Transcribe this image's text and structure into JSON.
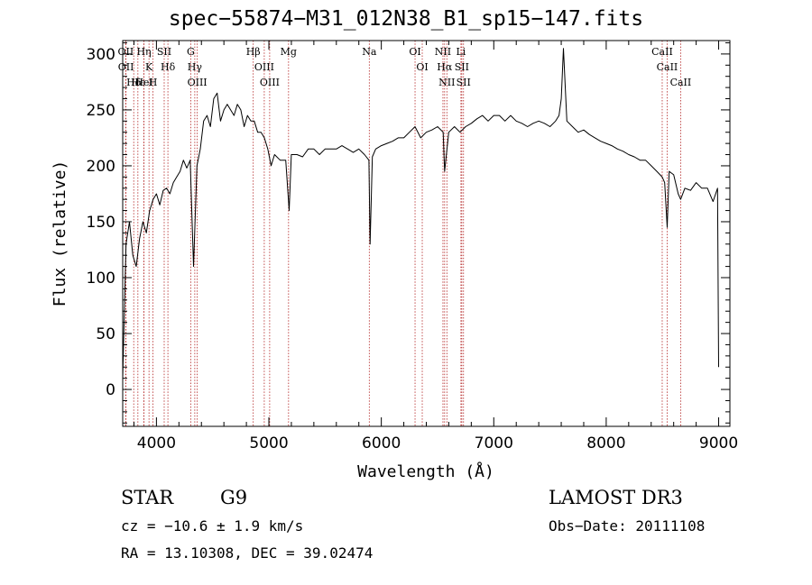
{
  "header": {
    "title": "spec−55874−M31_012N38_B1_sp15−147.fits"
  },
  "footer": {
    "class_label": "STAR",
    "subclass_label": "G9",
    "survey": "LAMOST DR3",
    "cz": "cz = −10.6 ± 1.9 km/s",
    "obs_date": "Obs−Date: 20111108",
    "coords": "RA =  13.10308, DEC =  39.02474"
  },
  "chart_data": {
    "type": "line",
    "title": "spec−55874−M31_012N38_B1_sp15−147.fits",
    "xlabel": "Wavelength (Å)",
    "ylabel": "Flux (relative)",
    "xlim": [
      3700,
      9100
    ],
    "ylim": [
      -33,
      312
    ],
    "xticks": [
      4000,
      5000,
      6000,
      7000,
      8000,
      9000
    ],
    "yticks": [
      0,
      50,
      100,
      150,
      200,
      250,
      300
    ],
    "grid": false,
    "line_color": "#000000",
    "marker_color": "#b22222",
    "series": [
      {
        "x": [
          3700,
          3730,
          3760,
          3790,
          3820,
          3850,
          3880,
          3910,
          3940,
          3970,
          4000,
          4030,
          4060,
          4090,
          4120,
          4150,
          4180,
          4210,
          4240,
          4270,
          4300,
          4330,
          4360,
          4390,
          4420,
          4450,
          4480,
          4510,
          4540,
          4570,
          4600,
          4630,
          4660,
          4690,
          4720,
          4750,
          4780,
          4810,
          4840,
          4870,
          4900,
          4930,
          4960,
          4990,
          5020,
          5050,
          5100,
          5150,
          5180,
          5200,
          5250,
          5300,
          5350,
          5400,
          5450,
          5500,
          5550,
          5600,
          5650,
          5700,
          5750,
          5800,
          5850,
          5890,
          5900,
          5920,
          5950,
          6000,
          6050,
          6100,
          6150,
          6200,
          6250,
          6300,
          6350,
          6400,
          6450,
          6500,
          6550,
          6563,
          6600,
          6650,
          6700,
          6750,
          6800,
          6850,
          6900,
          6950,
          7000,
          7050,
          7100,
          7150,
          7200,
          7250,
          7300,
          7350,
          7400,
          7450,
          7500,
          7550,
          7580,
          7600,
          7620,
          7650,
          7700,
          7750,
          7800,
          7850,
          7900,
          7950,
          8000,
          8050,
          8100,
          8150,
          8200,
          8250,
          8300,
          8350,
          8400,
          8450,
          8498,
          8520,
          8542,
          8560,
          8600,
          8640,
          8662,
          8700,
          8750,
          8800,
          8850,
          8900,
          8950,
          8990,
          9000
        ],
        "y": [
          10,
          130,
          150,
          120,
          110,
          135,
          150,
          140,
          160,
          170,
          175,
          165,
          178,
          180,
          175,
          185,
          190,
          195,
          205,
          198,
          205,
          110,
          200,
          215,
          240,
          245,
          235,
          260,
          265,
          240,
          250,
          255,
          250,
          245,
          255,
          250,
          235,
          245,
          240,
          240,
          230,
          230,
          225,
          215,
          200,
          210,
          205,
          205,
          160,
          210,
          210,
          208,
          215,
          215,
          210,
          215,
          215,
          215,
          218,
          215,
          212,
          215,
          210,
          205,
          130,
          208,
          215,
          218,
          220,
          222,
          225,
          225,
          230,
          235,
          225,
          230,
          232,
          235,
          230,
          195,
          230,
          235,
          230,
          235,
          238,
          242,
          245,
          240,
          245,
          245,
          240,
          245,
          240,
          238,
          235,
          238,
          240,
          238,
          235,
          240,
          245,
          260,
          305,
          240,
          235,
          230,
          232,
          228,
          225,
          222,
          220,
          218,
          215,
          213,
          210,
          208,
          205,
          205,
          200,
          195,
          190,
          185,
          145,
          195,
          192,
          175,
          170,
          180,
          178,
          185,
          180,
          180,
          168,
          180,
          20
        ]
      }
    ],
    "line_markers": [
      {
        "label": "Hδ",
        "wavelength": 3798
      },
      {
        "label": "OII",
        "wavelength": 3727
      },
      {
        "label": "OII",
        "wavelength": 3729
      },
      {
        "label": "Hε",
        "wavelength": 3835
      },
      {
        "label": "Hη",
        "wavelength": 3889
      },
      {
        "label": "K",
        "wavelength": 3934
      },
      {
        "label": "HeI",
        "wavelength": 3889
      },
      {
        "label": "H",
        "wavelength": 3969
      },
      {
        "label": "Hδ",
        "wavelength": 4102
      },
      {
        "label": "SII",
        "wavelength": 4069
      },
      {
        "label": "OIII",
        "wavelength": 4363
      },
      {
        "label": "Hγ",
        "wavelength": 4341
      },
      {
        "label": "G",
        "wavelength": 4305
      },
      {
        "label": "Hβ",
        "wavelength": 4861
      },
      {
        "label": "OIII",
        "wavelength": 5007
      },
      {
        "label": "OIII",
        "wavelength": 4959
      },
      {
        "label": "Mg",
        "wavelength": 5175
      },
      {
        "label": "Na",
        "wavelength": 5893
      },
      {
        "label": "OI",
        "wavelength": 6300
      },
      {
        "label": "OI",
        "wavelength": 6364
      },
      {
        "label": "Hα",
        "wavelength": 6563
      },
      {
        "label": "NII",
        "wavelength": 6548
      },
      {
        "label": "NII",
        "wavelength": 6583
      },
      {
        "label": "SII",
        "wavelength": 6716
      },
      {
        "label": "Li",
        "wavelength": 6708
      },
      {
        "label": "SII",
        "wavelength": 6731
      },
      {
        "label": "CaII",
        "wavelength": 8498
      },
      {
        "label": "CaII",
        "wavelength": 8542
      },
      {
        "label": "CaII",
        "wavelength": 8662
      }
    ]
  }
}
